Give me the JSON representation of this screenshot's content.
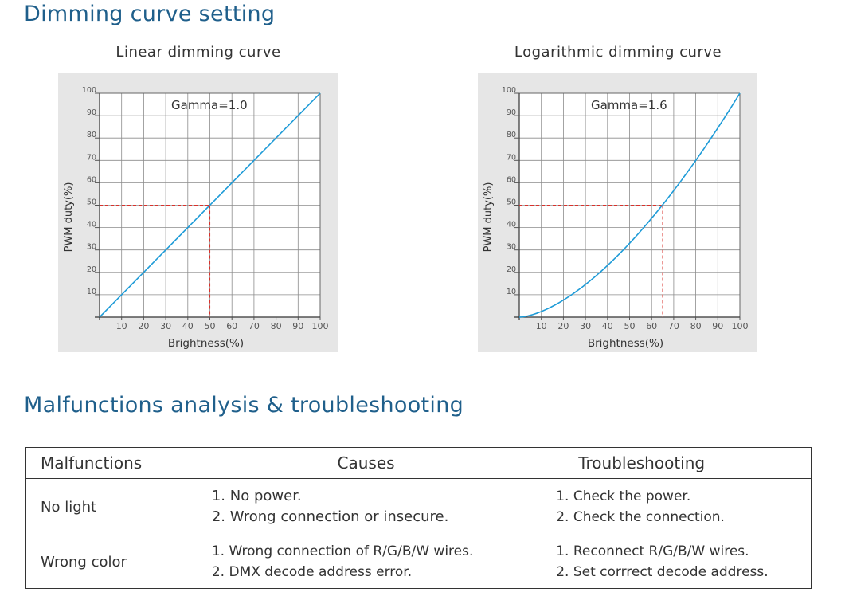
{
  "sections": {
    "dimming_title": "Dimming curve setting",
    "malfunction_title": "Malfunctions analysis & troubleshooting"
  },
  "chart_data": [
    {
      "type": "line",
      "title": "Linear dimming curve",
      "annotation": "Gamma=1.0",
      "gamma": 1.0,
      "xlabel": "Brightness(%)",
      "ylabel": "PWM duty(%)",
      "xlim": [
        0,
        100
      ],
      "ylim": [
        0,
        100
      ],
      "xticks": [
        10,
        20,
        30,
        40,
        50,
        60,
        70,
        80,
        90,
        100
      ],
      "yticks": [
        10,
        20,
        30,
        40,
        50,
        60,
        70,
        80,
        90,
        100
      ],
      "grid": true,
      "series": [
        {
          "color": "#1e9bd7",
          "x": [
            0,
            10,
            20,
            30,
            40,
            50,
            60,
            70,
            80,
            90,
            100
          ],
          "y": [
            0,
            10,
            20,
            30,
            40,
            50,
            60,
            70,
            80,
            90,
            100
          ]
        }
      ],
      "marker": {
        "x": 50,
        "y": 50,
        "color": "#d9312b",
        "style": "dashed"
      }
    },
    {
      "type": "line",
      "title": "Logarithmic dimming curve",
      "annotation": "Gamma=1.6",
      "gamma": 1.6,
      "xlabel": "Brightness(%)",
      "ylabel": "PWM duty(%)",
      "xlim": [
        0,
        100
      ],
      "ylim": [
        0,
        100
      ],
      "xticks": [
        10,
        20,
        30,
        40,
        50,
        60,
        70,
        80,
        90,
        100
      ],
      "yticks": [
        10,
        20,
        30,
        40,
        50,
        60,
        70,
        80,
        90,
        100
      ],
      "grid": true,
      "series": [
        {
          "color": "#1e9bd7",
          "x": [
            0,
            10,
            20,
            30,
            40,
            50,
            60,
            70,
            80,
            90,
            100
          ],
          "y": [
            0,
            2.5,
            7.6,
            14.6,
            23.1,
            33.0,
            44.2,
            56.5,
            70.0,
            84.5,
            100
          ]
        }
      ],
      "marker": {
        "x": 65,
        "y": 50,
        "color": "#d9312b",
        "style": "dashed"
      }
    }
  ],
  "table": {
    "headers": [
      "Malfunctions",
      "Causes",
      "Troubleshooting"
    ],
    "rows": [
      {
        "malfunction": "No light",
        "causes": [
          "1. No power.",
          "2. Wrong connection or insecure."
        ],
        "fixes": [
          "1. Check the power.",
          "2. Check the connection."
        ]
      },
      {
        "malfunction": "Wrong color",
        "causes": [
          "1. Wrong connection of R/G/B/W wires.",
          "2. DMX decode address error."
        ],
        "fixes": [
          "1. Reconnect R/G/B/W wires.",
          "2. Set corrrect decode address."
        ]
      }
    ]
  }
}
